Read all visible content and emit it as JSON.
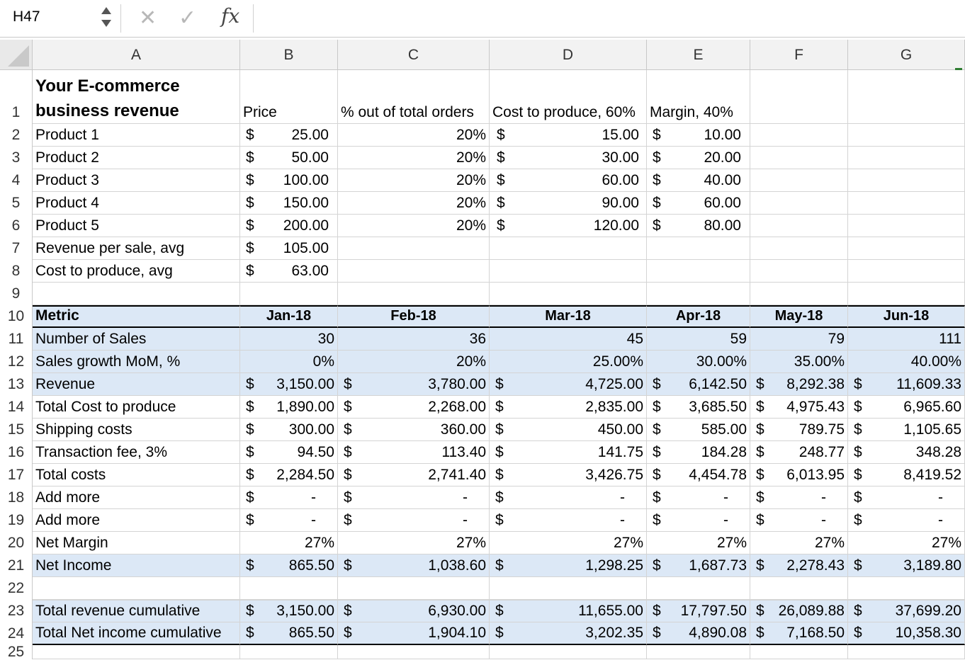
{
  "formula_bar": {
    "cell_ref": "H47",
    "fx_symbol": "fx"
  },
  "columns": [
    "A",
    "B",
    "C",
    "D",
    "E",
    "F",
    "G"
  ],
  "row_numbers": [
    "1",
    "2",
    "3",
    "4",
    "5",
    "6",
    "7",
    "8",
    "9",
    "10",
    "11",
    "12",
    "13",
    "14",
    "15",
    "16",
    "17",
    "18",
    "19",
    "20",
    "21",
    "22",
    "23",
    "24",
    "25"
  ],
  "top_table": {
    "title_line1": "Your E-commerce",
    "title_line2": "business revenue",
    "headers": {
      "price": "Price",
      "pct": "% out of total orders",
      "cost": "Cost to produce, 60%",
      "margin": "Margin, 40%"
    },
    "products": [
      {
        "name": "Product 1",
        "price": "25.00",
        "pct": "20%",
        "cost": "15.00",
        "margin": "10.00"
      },
      {
        "name": "Product 2",
        "price": "50.00",
        "pct": "20%",
        "cost": "30.00",
        "margin": "20.00"
      },
      {
        "name": "Product 3",
        "price": "100.00",
        "pct": "20%",
        "cost": "60.00",
        "margin": "40.00"
      },
      {
        "name": "Product 4",
        "price": "150.00",
        "pct": "20%",
        "cost": "90.00",
        "margin": "60.00"
      },
      {
        "name": "Product 5",
        "price": "200.00",
        "pct": "20%",
        "cost": "120.00",
        "margin": "80.00"
      }
    ],
    "revenue_avg": {
      "label": "Revenue per sale, avg",
      "value": "105.00"
    },
    "cost_avg": {
      "label": "Cost to produce, avg",
      "value": "63.00"
    },
    "currency": "$"
  },
  "metrics": {
    "header": "Metric",
    "months": [
      "Jan-18",
      "Feb-18",
      "Mar-18",
      "Apr-18",
      "May-18",
      "Jun-18"
    ],
    "rows": [
      {
        "label": "Number of Sales",
        "cur": false,
        "values": [
          "30",
          "36",
          "45",
          "59",
          "79",
          "111"
        ]
      },
      {
        "label": "Sales growth MoM, %",
        "cur": false,
        "values": [
          "0%",
          "20%",
          "25.00%",
          "30.00%",
          "35.00%",
          "40.00%"
        ]
      },
      {
        "label": "Revenue",
        "cur": true,
        "values": [
          "3,150.00",
          "3,780.00",
          "4,725.00",
          "6,142.50",
          "8,292.38",
          "11,609.33"
        ]
      },
      {
        "label": "Total Cost to produce",
        "cur": true,
        "values": [
          "1,890.00",
          "2,268.00",
          "2,835.00",
          "3,685.50",
          "4,975.43",
          "6,965.60"
        ]
      },
      {
        "label": "Shipping costs",
        "cur": true,
        "values": [
          "300.00",
          "360.00",
          "450.00",
          "585.00",
          "789.75",
          "1,105.65"
        ]
      },
      {
        "label": "Transaction fee, 3%",
        "cur": true,
        "values": [
          "94.50",
          "113.40",
          "141.75",
          "184.28",
          "248.77",
          "348.28"
        ]
      },
      {
        "label": "Total costs",
        "cur": true,
        "values": [
          "2,284.50",
          "2,741.40",
          "3,426.75",
          "4,454.78",
          "6,013.95",
          "8,419.52"
        ]
      },
      {
        "label": "Add more",
        "cur": true,
        "values": [
          "-",
          "-",
          "-",
          "-",
          "-",
          "-"
        ]
      },
      {
        "label": "Add more",
        "cur": true,
        "values": [
          "-",
          "-",
          "-",
          "-",
          "-",
          "-"
        ]
      },
      {
        "label": "Net Margin",
        "cur": false,
        "values": [
          "27%",
          "27%",
          "27%",
          "27%",
          "27%",
          "27%"
        ]
      },
      {
        "label": "Net Income",
        "cur": true,
        "values": [
          "865.50",
          "1,038.60",
          "1,298.25",
          "1,687.73",
          "2,278.43",
          "3,189.80"
        ]
      }
    ],
    "cumulative": [
      {
        "label": "Total revenue cumulative",
        "values": [
          "3,150.00",
          "6,930.00",
          "11,655.00",
          "17,797.50",
          "26,089.88",
          "37,699.20"
        ]
      },
      {
        "label": "Total Net income cumulative",
        "values": [
          "865.50",
          "1,904.10",
          "3,202.35",
          "4,890.08",
          "7,168.50",
          "10,358.30"
        ]
      }
    ]
  }
}
